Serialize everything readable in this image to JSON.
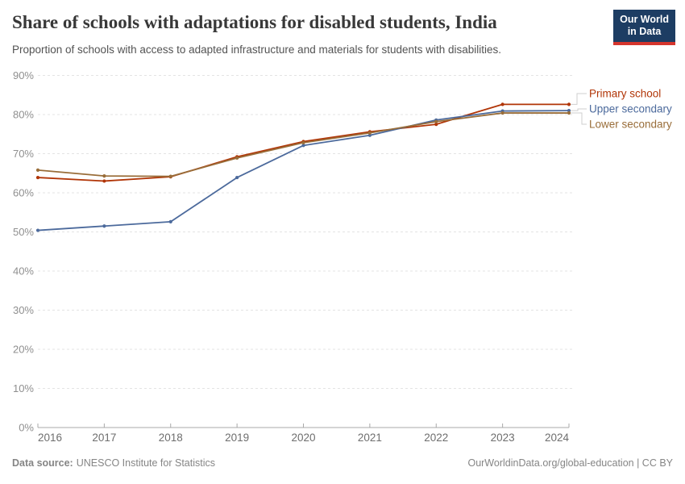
{
  "header": {
    "title": "Share of schools with adaptations for disabled students, India",
    "subtitle": "Proportion of schools with access to adapted infrastructure and materials for students with disabilities."
  },
  "logo": {
    "line1": "Our World",
    "line2": "in Data",
    "bg_color": "#1d3d63",
    "accent_color": "#d5352d"
  },
  "footer": {
    "source_label": "Data source:",
    "source_value": "UNESCO Institute for Statistics",
    "rights": "OurWorldinData.org/global-education | CC BY"
  },
  "chart_data": {
    "type": "line",
    "x": [
      2016,
      2017,
      2018,
      2019,
      2020,
      2021,
      2022,
      2023,
      2024
    ],
    "series": [
      {
        "name": "Primary school",
        "color": "#b13507",
        "values": [
          63.9,
          63.0,
          64.1,
          69.2,
          73.1,
          75.6,
          77.5,
          82.6,
          82.6
        ]
      },
      {
        "name": "Upper secondary",
        "color": "#4c6a9c",
        "values": [
          50.4,
          51.5,
          52.6,
          63.9,
          72.1,
          74.7,
          78.6,
          80.9,
          81.0
        ]
      },
      {
        "name": "Lower secondary",
        "color": "#996d39",
        "values": [
          65.8,
          64.3,
          64.2,
          68.9,
          72.8,
          75.3,
          78.2,
          80.4,
          80.4
        ]
      }
    ],
    "ylabel": "",
    "xlabel": "",
    "ylim": [
      0,
      90
    ],
    "ytick_step": 10,
    "ytick_suffix": "%",
    "grid": "horizontal dashed",
    "legend_position": "right, connected to line ends",
    "axis_color": "#a8a8a8",
    "grid_color": "#e3e3e3",
    "tick_label_color": "#8f8f8f",
    "x_label_color": "#6e6e6e"
  }
}
